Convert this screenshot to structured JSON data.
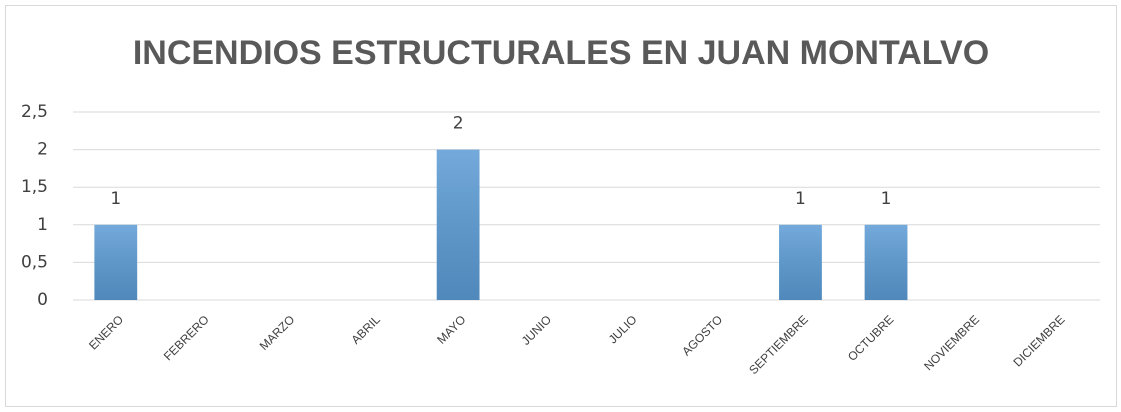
{
  "chart_data": {
    "type": "bar",
    "title": "INCENDIOS ESTRUCTURALES EN JUAN MONTALVO",
    "categories": [
      "ENERO",
      "FEBRERO",
      "MARZO",
      "ABRIL",
      "MAYO",
      "JUNIO",
      "JULIO",
      "AGOSTO",
      "SEPTIEMBRE",
      "OCTUBRE",
      "NOVIEMBRE",
      "DICIEMBRE"
    ],
    "values": [
      1,
      0,
      0,
      0,
      2,
      0,
      0,
      0,
      1,
      1,
      0,
      0
    ],
    "color": "#5b9bd5",
    "ylim": [
      0,
      2.5
    ],
    "yticks": [
      0,
      {
        "value": 0.5,
        "label": "0,5"
      },
      1,
      {
        "value": 1.5,
        "label": "1,5"
      },
      2,
      {
        "value": 2.5,
        "label": "2,5"
      }
    ],
    "grid": true
  }
}
